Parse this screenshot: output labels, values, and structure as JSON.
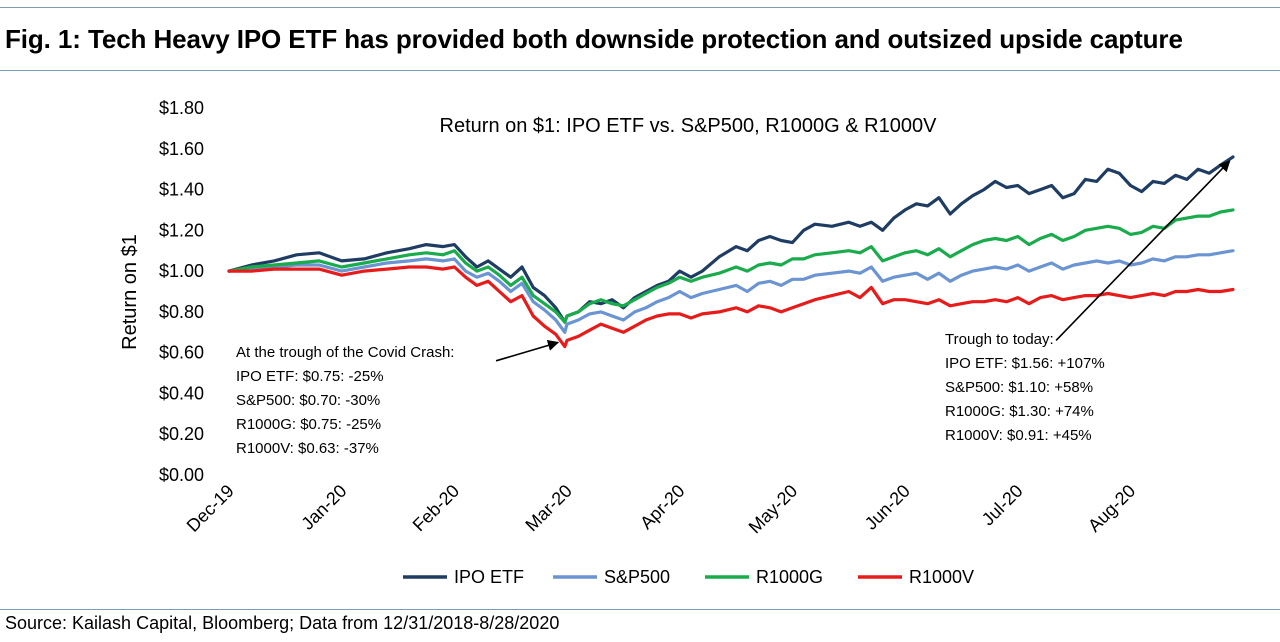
{
  "figure": {
    "title": "Fig. 1: Tech Heavy IPO ETF has provided both downside protection and outsized upside capture",
    "source": "Source: Kailash Capital, Bloomberg; Data from 12/31/2018-8/28/2020"
  },
  "chart_data": {
    "type": "line",
    "title": "Return on $1: IPO ETF vs. S&P500, R1000G & R1000V",
    "xlabel": "",
    "ylabel": "Return on $1",
    "ylim": [
      0,
      1.8
    ],
    "yticks": [
      0,
      0.2,
      0.4,
      0.6,
      0.8,
      1.0,
      1.2,
      1.4,
      1.6,
      1.8
    ],
    "ytick_labels": [
      "$0.00",
      "$0.20",
      "$0.40",
      "$0.60",
      "$0.80",
      "$1.00",
      "$1.20",
      "$1.40",
      "$1.60",
      "$1.80"
    ],
    "xlim": [
      0,
      8.91
    ],
    "xticks": [
      0,
      1,
      2,
      3,
      4,
      5,
      6,
      7,
      8
    ],
    "xtick_labels": [
      "Dec-19",
      "Jan-20",
      "Feb-20",
      "Mar-20",
      "Apr-20",
      "May-20",
      "Jun-20",
      "Jul-20",
      "Aug-20"
    ],
    "legend_position": "bottom",
    "grid": false,
    "series": [
      {
        "name": "IPO ETF",
        "color": "#1f3d63",
        "x": [
          0,
          0.2,
          0.4,
          0.6,
          0.8,
          1.0,
          1.2,
          1.4,
          1.6,
          1.75,
          1.9,
          2.0,
          2.1,
          2.2,
          2.3,
          2.4,
          2.5,
          2.6,
          2.7,
          2.8,
          2.9,
          2.98,
          3.0,
          3.1,
          3.2,
          3.3,
          3.4,
          3.5,
          3.6,
          3.7,
          3.8,
          3.9,
          4.0,
          4.1,
          4.2,
          4.35,
          4.5,
          4.6,
          4.7,
          4.8,
          4.9,
          5.0,
          5.1,
          5.2,
          5.35,
          5.5,
          5.6,
          5.7,
          5.8,
          5.9,
          6.0,
          6.1,
          6.2,
          6.3,
          6.4,
          6.5,
          6.6,
          6.7,
          6.8,
          6.9,
          7.0,
          7.1,
          7.2,
          7.3,
          7.4,
          7.5,
          7.6,
          7.7,
          7.8,
          7.9,
          8.0,
          8.1,
          8.2,
          8.3,
          8.4,
          8.5,
          8.6,
          8.7,
          8.8,
          8.91
        ],
        "values": [
          1.0,
          1.03,
          1.05,
          1.08,
          1.09,
          1.05,
          1.06,
          1.09,
          1.11,
          1.13,
          1.12,
          1.13,
          1.07,
          1.02,
          1.05,
          1.01,
          0.97,
          1.02,
          0.92,
          0.88,
          0.82,
          0.75,
          0.78,
          0.8,
          0.85,
          0.84,
          0.86,
          0.82,
          0.87,
          0.9,
          0.93,
          0.95,
          1.0,
          0.97,
          1.0,
          1.07,
          1.12,
          1.1,
          1.15,
          1.17,
          1.15,
          1.14,
          1.2,
          1.23,
          1.22,
          1.24,
          1.22,
          1.24,
          1.2,
          1.26,
          1.3,
          1.33,
          1.32,
          1.36,
          1.28,
          1.33,
          1.37,
          1.4,
          1.44,
          1.41,
          1.42,
          1.38,
          1.4,
          1.42,
          1.36,
          1.38,
          1.45,
          1.44,
          1.5,
          1.48,
          1.42,
          1.39,
          1.44,
          1.43,
          1.47,
          1.45,
          1.5,
          1.48,
          1.52,
          1.56
        ]
      },
      {
        "name": "S&P500",
        "color": "#6b94d2",
        "x": [
          0,
          0.2,
          0.4,
          0.6,
          0.8,
          1.0,
          1.2,
          1.4,
          1.6,
          1.75,
          1.9,
          2.0,
          2.1,
          2.2,
          2.3,
          2.4,
          2.5,
          2.6,
          2.7,
          2.8,
          2.9,
          2.98,
          3.0,
          3.1,
          3.2,
          3.3,
          3.4,
          3.5,
          3.6,
          3.7,
          3.8,
          3.9,
          4.0,
          4.1,
          4.2,
          4.35,
          4.5,
          4.6,
          4.7,
          4.8,
          4.9,
          5.0,
          5.1,
          5.2,
          5.35,
          5.5,
          5.6,
          5.7,
          5.8,
          5.9,
          6.0,
          6.1,
          6.2,
          6.3,
          6.4,
          6.5,
          6.6,
          6.7,
          6.8,
          6.9,
          7.0,
          7.1,
          7.2,
          7.3,
          7.4,
          7.5,
          7.6,
          7.7,
          7.8,
          7.9,
          8.0,
          8.1,
          8.2,
          8.3,
          8.4,
          8.5,
          8.6,
          8.7,
          8.8,
          8.91
        ],
        "values": [
          1.0,
          1.01,
          1.02,
          1.03,
          1.03,
          1.0,
          1.02,
          1.04,
          1.05,
          1.06,
          1.05,
          1.06,
          1.0,
          0.97,
          0.99,
          0.95,
          0.9,
          0.94,
          0.85,
          0.81,
          0.76,
          0.7,
          0.74,
          0.76,
          0.79,
          0.8,
          0.78,
          0.76,
          0.8,
          0.82,
          0.85,
          0.87,
          0.9,
          0.87,
          0.89,
          0.91,
          0.93,
          0.9,
          0.94,
          0.95,
          0.93,
          0.96,
          0.96,
          0.98,
          0.99,
          1.0,
          0.99,
          1.02,
          0.95,
          0.97,
          0.98,
          0.99,
          0.96,
          0.99,
          0.95,
          0.98,
          1.0,
          1.01,
          1.02,
          1.01,
          1.03,
          1.0,
          1.02,
          1.04,
          1.01,
          1.03,
          1.04,
          1.05,
          1.04,
          1.05,
          1.03,
          1.04,
          1.06,
          1.05,
          1.07,
          1.07,
          1.08,
          1.08,
          1.09,
          1.1
        ]
      },
      {
        "name": "R1000G",
        "color": "#1aab4c",
        "x": [
          0,
          0.2,
          0.4,
          0.6,
          0.8,
          1.0,
          1.2,
          1.4,
          1.6,
          1.75,
          1.9,
          2.0,
          2.1,
          2.2,
          2.3,
          2.4,
          2.5,
          2.6,
          2.7,
          2.8,
          2.9,
          2.98,
          3.0,
          3.1,
          3.2,
          3.3,
          3.4,
          3.5,
          3.6,
          3.7,
          3.8,
          3.9,
          4.0,
          4.1,
          4.2,
          4.35,
          4.5,
          4.6,
          4.7,
          4.8,
          4.9,
          5.0,
          5.1,
          5.2,
          5.35,
          5.5,
          5.6,
          5.7,
          5.8,
          5.9,
          6.0,
          6.1,
          6.2,
          6.3,
          6.4,
          6.5,
          6.6,
          6.7,
          6.8,
          6.9,
          7.0,
          7.1,
          7.2,
          7.3,
          7.4,
          7.5,
          7.6,
          7.7,
          7.8,
          7.9,
          8.0,
          8.1,
          8.2,
          8.3,
          8.4,
          8.5,
          8.6,
          8.7,
          8.8,
          8.91
        ],
        "values": [
          1.0,
          1.02,
          1.03,
          1.04,
          1.05,
          1.02,
          1.04,
          1.06,
          1.08,
          1.09,
          1.08,
          1.1,
          1.04,
          1.0,
          1.02,
          0.98,
          0.93,
          0.97,
          0.88,
          0.84,
          0.8,
          0.75,
          0.78,
          0.8,
          0.84,
          0.86,
          0.84,
          0.83,
          0.86,
          0.89,
          0.92,
          0.94,
          0.97,
          0.95,
          0.97,
          0.99,
          1.02,
          1.0,
          1.03,
          1.04,
          1.03,
          1.06,
          1.06,
          1.08,
          1.09,
          1.1,
          1.09,
          1.12,
          1.05,
          1.07,
          1.09,
          1.1,
          1.08,
          1.11,
          1.07,
          1.1,
          1.13,
          1.15,
          1.16,
          1.15,
          1.17,
          1.13,
          1.16,
          1.18,
          1.15,
          1.17,
          1.2,
          1.21,
          1.22,
          1.21,
          1.18,
          1.19,
          1.22,
          1.21,
          1.25,
          1.26,
          1.27,
          1.27,
          1.29,
          1.3
        ]
      },
      {
        "name": "R1000V",
        "color": "#e81b1b",
        "x": [
          0,
          0.2,
          0.4,
          0.6,
          0.8,
          1.0,
          1.2,
          1.4,
          1.6,
          1.75,
          1.9,
          2.0,
          2.1,
          2.2,
          2.3,
          2.4,
          2.5,
          2.6,
          2.7,
          2.8,
          2.9,
          2.98,
          3.0,
          3.1,
          3.2,
          3.3,
          3.4,
          3.5,
          3.6,
          3.7,
          3.8,
          3.9,
          4.0,
          4.1,
          4.2,
          4.35,
          4.5,
          4.6,
          4.7,
          4.8,
          4.9,
          5.0,
          5.1,
          5.2,
          5.35,
          5.5,
          5.6,
          5.7,
          5.8,
          5.9,
          6.0,
          6.1,
          6.2,
          6.3,
          6.4,
          6.5,
          6.6,
          6.7,
          6.8,
          6.9,
          7.0,
          7.1,
          7.2,
          7.3,
          7.4,
          7.5,
          7.6,
          7.7,
          7.8,
          7.9,
          8.0,
          8.1,
          8.2,
          8.3,
          8.4,
          8.5,
          8.6,
          8.7,
          8.8,
          8.91
        ],
        "values": [
          1.0,
          1.0,
          1.01,
          1.01,
          1.01,
          0.98,
          1.0,
          1.01,
          1.02,
          1.02,
          1.01,
          1.02,
          0.97,
          0.93,
          0.95,
          0.9,
          0.85,
          0.88,
          0.78,
          0.73,
          0.69,
          0.63,
          0.66,
          0.68,
          0.71,
          0.74,
          0.72,
          0.7,
          0.73,
          0.76,
          0.78,
          0.79,
          0.79,
          0.77,
          0.79,
          0.8,
          0.82,
          0.8,
          0.83,
          0.82,
          0.8,
          0.82,
          0.84,
          0.86,
          0.88,
          0.9,
          0.87,
          0.92,
          0.84,
          0.86,
          0.86,
          0.85,
          0.84,
          0.86,
          0.83,
          0.84,
          0.85,
          0.85,
          0.86,
          0.85,
          0.87,
          0.84,
          0.87,
          0.88,
          0.86,
          0.87,
          0.88,
          0.88,
          0.89,
          0.88,
          0.87,
          0.88,
          0.89,
          0.88,
          0.9,
          0.9,
          0.91,
          0.9,
          0.9,
          0.91
        ]
      }
    ],
    "annotations": {
      "trough": {
        "lines": [
          "At the trough of the Covid Crash:",
          "IPO ETF: $0.75: -25%",
          "S&P500: $0.70: -30%",
          "R1000G: $0.75: -25%",
          "R1000V: $0.63: -37%"
        ],
        "arrow_from": [
          2.37,
          0.56
        ],
        "arrow_to": [
          2.92,
          0.65
        ]
      },
      "today": {
        "lines": [
          "Trough to today:",
          "IPO ETF: $1.56: +107%",
          "S&P500: $1.10: +58%",
          "R1000G: $1.30: +74%",
          "R1000V: $0.91: +45%"
        ],
        "arrow_from": [
          7.34,
          0.66
        ],
        "arrow_to": [
          8.88,
          1.54
        ]
      }
    }
  }
}
